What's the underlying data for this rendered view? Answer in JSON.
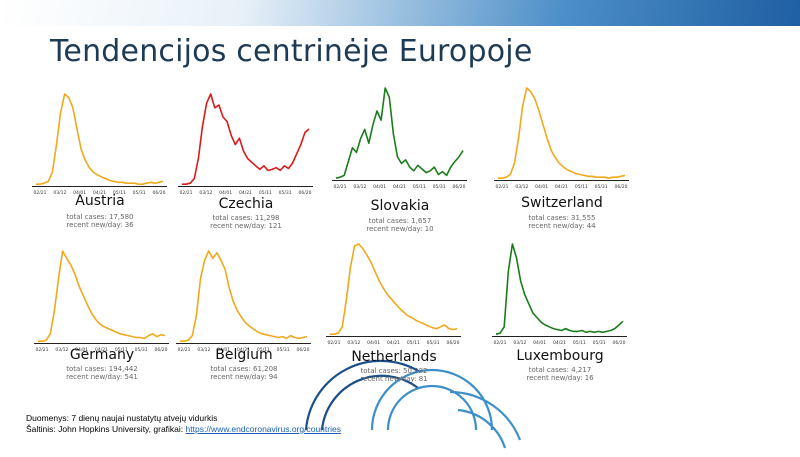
{
  "slide": {
    "title": "Tendencijos centrinėje Europoje"
  },
  "footer": {
    "line1": "Duomenys: 7 dienų naujai nustatytų atvejų vidurkis",
    "line2_prefix": "Šaltinis: John Hopkins University, grafikai: ",
    "link": "https://www.endcoronavirus.org/countries"
  },
  "chart_data": [
    {
      "type": "line",
      "country": "Austria",
      "color": "#f0a81c",
      "x_ticks": [
        "02/21",
        "03/12",
        "04/01",
        "04/21",
        "05/11",
        "05/31",
        "06/20"
      ],
      "total_label": "total cases: 17,580",
      "recent_label": "recent new/day: 36",
      "y": [
        2,
        2,
        3,
        5,
        15,
        45,
        80,
        100,
        96,
        85,
        62,
        40,
        28,
        20,
        15,
        12,
        10,
        8,
        6,
        5,
        4,
        4,
        3,
        3,
        3,
        2,
        2,
        3,
        4,
        3,
        4,
        5
      ]
    },
    {
      "type": "line",
      "country": "Czechia",
      "color": "#d81b1b",
      "x_ticks": [
        "02/21",
        "03/12",
        "04/01",
        "04/21",
        "05/11",
        "05/31",
        "06/20"
      ],
      "total_label": "total cases: 11,298",
      "recent_label": "recent new/day: 121",
      "y": [
        2,
        2,
        3,
        8,
        30,
        65,
        90,
        100,
        85,
        88,
        75,
        70,
        55,
        45,
        52,
        38,
        30,
        26,
        22,
        18,
        22,
        17,
        18,
        20,
        17,
        22,
        19,
        25,
        35,
        45,
        58,
        62
      ]
    },
    {
      "type": "line",
      "country": "Slovakia",
      "color": "#1a7d1a",
      "x_ticks": [
        "02/21",
        "03/12",
        "04/01",
        "04/21",
        "05/11",
        "05/31",
        "06/20"
      ],
      "total_label": "total cases: 1,657",
      "recent_label": "recent new/day: 10",
      "y": [
        2,
        3,
        5,
        20,
        35,
        30,
        45,
        55,
        40,
        60,
        75,
        65,
        100,
        90,
        50,
        25,
        18,
        22,
        14,
        10,
        16,
        12,
        8,
        10,
        14,
        6,
        9,
        5,
        14,
        20,
        25,
        32
      ]
    },
    {
      "type": "line",
      "country": "Switzerland",
      "color": "#f0a81c",
      "x_ticks": [
        "02/21",
        "03/12",
        "04/01",
        "04/21",
        "05/11",
        "05/31",
        "06/20"
      ],
      "total_label": "total cases: 31,555",
      "recent_label": "recent new/day: 44",
      "y": [
        2,
        2,
        3,
        6,
        18,
        45,
        80,
        100,
        96,
        88,
        75,
        60,
        45,
        32,
        24,
        18,
        14,
        11,
        9,
        7,
        6,
        5,
        4,
        4,
        3,
        3,
        3,
        2,
        3,
        3,
        4,
        5
      ]
    },
    {
      "type": "line",
      "country": "Germany",
      "color": "#f0a81c",
      "x_ticks": [
        "02/21",
        "03/12",
        "04/01",
        "04/21",
        "05/11",
        "05/31",
        "06/20"
      ],
      "total_label": "total cases: 194,442",
      "recent_label": "recent new/day: 541",
      "y": [
        2,
        2,
        3,
        10,
        35,
        70,
        100,
        92,
        85,
        75,
        62,
        52,
        42,
        33,
        26,
        21,
        18,
        16,
        14,
        12,
        10,
        9,
        8,
        7,
        6,
        6,
        5,
        8,
        10,
        7,
        9,
        8
      ]
    },
    {
      "type": "line",
      "country": "Belgium",
      "color": "#f0a81c",
      "x_ticks": [
        "02/21",
        "03/12",
        "04/01",
        "04/21",
        "05/11",
        "05/31",
        "06/20"
      ],
      "total_label": "total cases: 61,208",
      "recent_label": "recent new/day: 94",
      "y": [
        2,
        2,
        3,
        8,
        30,
        70,
        90,
        100,
        92,
        98,
        90,
        80,
        60,
        45,
        35,
        28,
        22,
        18,
        15,
        12,
        10,
        9,
        8,
        7,
        6,
        7,
        5,
        8,
        6,
        5,
        6,
        7
      ]
    },
    {
      "type": "line",
      "country": "Netherlands",
      "color": "#f0a81c",
      "x_ticks": [
        "02/21",
        "03/12",
        "04/01",
        "04/21",
        "05/11",
        "05/31",
        "06/20"
      ],
      "total_label": "total cases: 50,282",
      "recent_label": "recent new/day: 81",
      "y": [
        2,
        2,
        3,
        10,
        40,
        75,
        98,
        100,
        95,
        88,
        80,
        70,
        60,
        52,
        45,
        40,
        35,
        30,
        26,
        22,
        20,
        17,
        15,
        13,
        11,
        9,
        8,
        10,
        12,
        8,
        7,
        8
      ]
    },
    {
      "type": "line",
      "country": "Luxembourg",
      "color": "#1a7d1a",
      "x_ticks": [
        "02/21",
        "03/12",
        "04/01",
        "04/21",
        "05/11",
        "05/31",
        "06/20"
      ],
      "total_label": "total cases: 4,217",
      "recent_label": "recent new/day: 16",
      "y": [
        2,
        3,
        10,
        70,
        100,
        85,
        60,
        45,
        35,
        25,
        20,
        15,
        12,
        10,
        8,
        7,
        6,
        8,
        6,
        5,
        5,
        6,
        4,
        5,
        4,
        5,
        4,
        5,
        6,
        8,
        12,
        16
      ]
    }
  ]
}
